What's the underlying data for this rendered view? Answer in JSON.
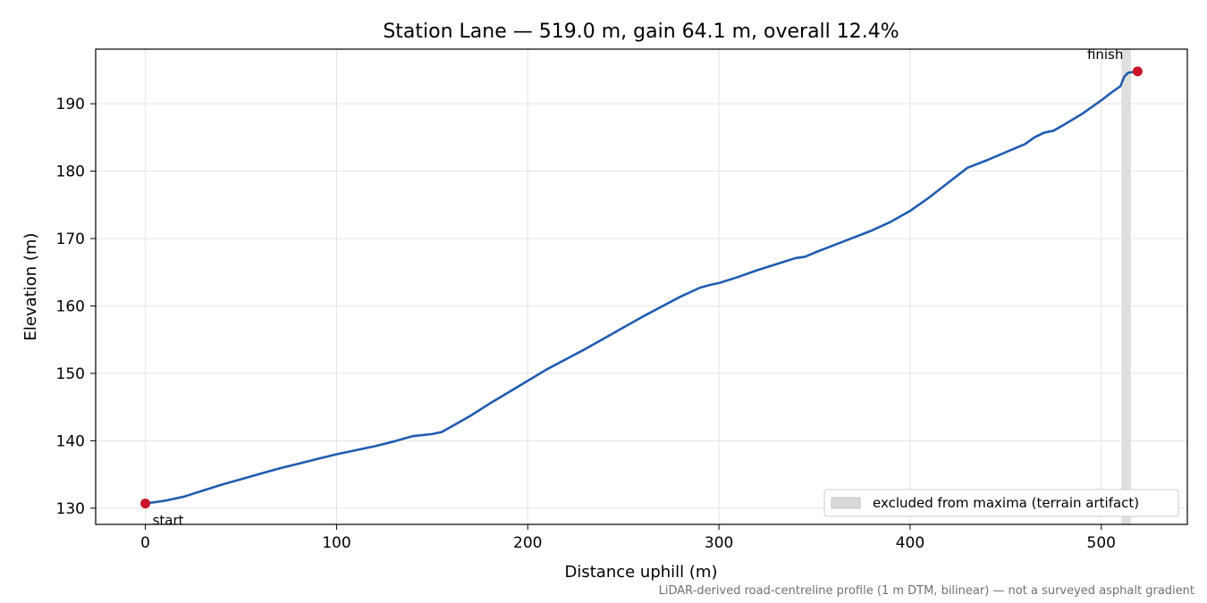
{
  "chart_data": {
    "type": "line",
    "title": "Station Lane — 519.0 m, gain 64.1 m, overall 12.4%",
    "xlabel": "Distance uphill (m)",
    "ylabel": "Elevation (m)",
    "xlim": [
      -26,
      545
    ],
    "ylim": [
      127.6,
      198.1
    ],
    "xticks": [
      0,
      100,
      200,
      300,
      400,
      500
    ],
    "yticks": [
      130,
      140,
      150,
      160,
      170,
      180,
      190
    ],
    "grid": true,
    "colors": {
      "line": "#1f5cb0",
      "marker": "#c8162c",
      "band": "#d9d9d6",
      "grid": "#e3e3e3",
      "footnote": "#707070"
    },
    "series": [
      {
        "x": [
          0,
          10,
          20,
          30,
          40,
          50,
          60,
          70,
          80,
          90,
          100,
          110,
          120,
          130,
          140,
          150,
          155,
          160,
          170,
          180,
          190,
          200,
          210,
          220,
          230,
          240,
          250,
          260,
          270,
          280,
          290,
          295,
          300,
          310,
          320,
          330,
          340,
          345,
          350,
          360,
          370,
          380,
          390,
          400,
          410,
          420,
          430,
          440,
          450,
          460,
          465,
          470,
          475,
          480,
          490,
          500,
          505,
          510,
          512,
          514,
          519
        ],
        "y": [
          130.7,
          131.1,
          131.7,
          132.6,
          133.5,
          134.3,
          135.1,
          135.9,
          136.6,
          137.3,
          138.0,
          138.6,
          139.2,
          139.9,
          140.7,
          141.0,
          141.3,
          142.1,
          143.7,
          145.5,
          147.2,
          148.9,
          150.6,
          152.1,
          153.6,
          155.2,
          156.8,
          158.4,
          159.9,
          161.4,
          162.7,
          163.1,
          163.4,
          164.3,
          165.3,
          166.2,
          167.1,
          167.3,
          167.9,
          169.0,
          170.1,
          171.2,
          172.5,
          174.1,
          176.1,
          178.3,
          180.5,
          181.6,
          182.8,
          184.0,
          185.0,
          185.7,
          186.0,
          186.8,
          188.5,
          190.5,
          191.6,
          192.6,
          194.0,
          194.6,
          194.8
        ]
      }
    ],
    "markers": [
      {
        "label": "start",
        "x": 0,
        "y": 130.7
      },
      {
        "label": "finish",
        "x": 519,
        "y": 194.8
      }
    ],
    "excluded_band": {
      "x_from": 510.5,
      "x_to": 515.5,
      "label": "excluded from maxima (terrain artifact)"
    },
    "legend_position": "lower-right",
    "footnote": "LiDAR-derived road-centreline profile (1 m DTM, bilinear) — not a surveyed asphalt gradient"
  }
}
